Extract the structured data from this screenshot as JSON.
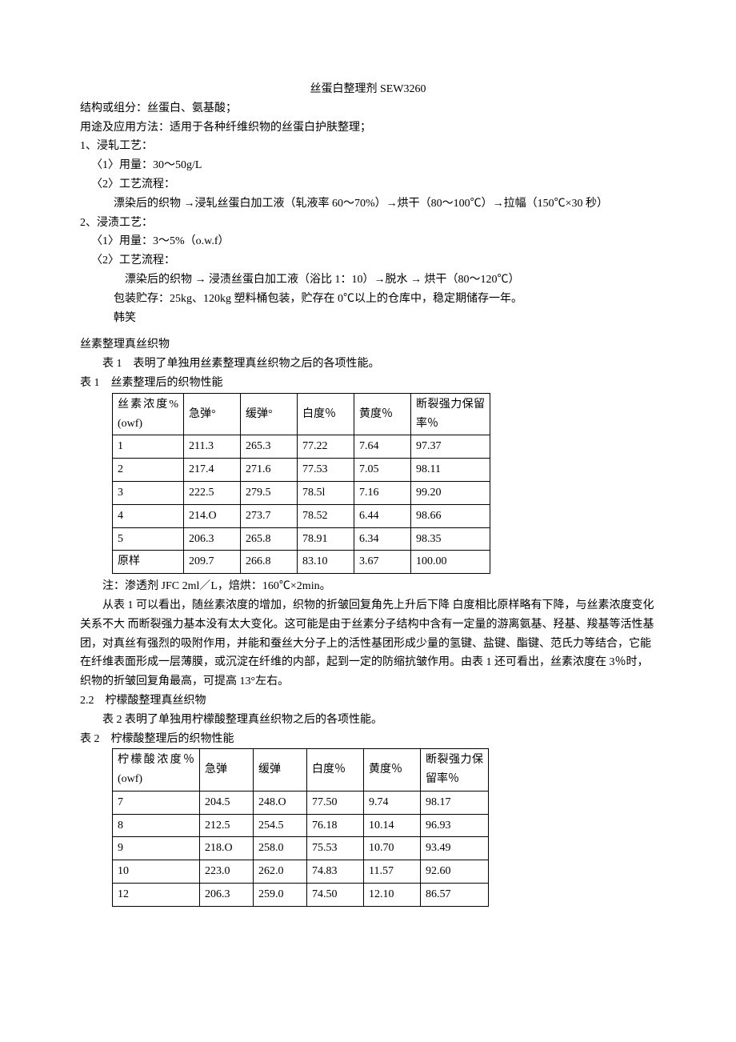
{
  "title": "丝蛋白整理剂 SEW3260",
  "lines": {
    "l1": "结构或组分：丝蛋白、氨基酸；",
    "l2": "用途及应用方法：适用于各种纤维织物的丝蛋白护肤整理；",
    "l3": "1、浸轧工艺：",
    "l4": "〈1〉用量：30～50g/L",
    "l5": "〈2〉工艺流程：",
    "l6": "漂染后的织物 →浸轧丝蛋白加工液（轧液率 60～70%）→烘干（80～100℃）→拉幅（150℃×30 秒）",
    "l7": "2、浸渍工艺：",
    "l8": "〈1〉用量：3～5%（o.w.f）",
    "l9": "〈2〉工艺流程：",
    "l10": "漂染后的织物 → 浸渍丝蛋白加工液（浴比 1：10）→脱水 → 烘干（80～120℃）",
    "l11": "包装贮存：25kg、120kg 塑料桶包装，贮存在 0℃以上的仓库中，稳定期储存一年。",
    "l12": "韩笑",
    "section1": "丝素整理真丝织物",
    "t1intro": "表 1　表明了单独用丝素整理真丝织物之后的各项性能。",
    "t1caption": "表 1　丝素整理后的织物性能",
    "t1note": "注：渗透剂 JFC 2ml／L，焙烘：160℃×2min。",
    "p1": "从表 1 可以看出，随丝素浓度的增加，织物的折皱回复角先上升后下降 白度相比原样略有下降，与丝素浓度变化关系不大 而断裂强力基本没有太大变化。这可能是由于丝素分子结构中含有一定量的游离氨基、羟基、羧基等活性基团，对真丝有强烈的吸附作用，并能和蚕丝大分子上的活性基团形成少量的氢键、盐键、酯键、范氏力等结合，它能在纤维表面形成一层薄膜，或沉淀在纤维的内部，起到一定的防缩抗皱作用。由表 1 还可看出，丝素浓度在 3％时，织物的折皱回复角最高，可提高 13°左右。",
    "section2": "2.2　柠檬酸整理真丝织物",
    "t2intro": "表 2 表明了单独用柠檬酸整理真丝织物之后的各项性能。",
    "t2caption": "表 2　柠檬酸整理后的织物性能"
  },
  "table1": {
    "columns": [
      "丝素浓度%(owf)",
      "急弹°",
      "缓弹°",
      "白度％",
      "黄度％",
      "断裂强力保留率％"
    ],
    "rows": [
      [
        "1",
        "211.3",
        "265.3",
        "77.22",
        "7.64",
        "97.37"
      ],
      [
        "2",
        "217.4",
        "271.6",
        "77.53",
        "7.05",
        "98.11"
      ],
      [
        "3",
        "222.5",
        "279.5",
        "78.5l",
        "7.16",
        "99.20"
      ],
      [
        "4",
        "214.O",
        "273.7",
        "78.52",
        "6.44",
        "98.66"
      ],
      [
        "5",
        "206.3",
        "265.8",
        "78.91",
        "6.34",
        "98.35"
      ],
      [
        "原样",
        "209.7",
        "266.8",
        "83.10",
        "3.67",
        "100.00"
      ]
    ]
  },
  "table2": {
    "columns": [
      "柠檬酸浓度％(owf)",
      "急弹",
      "缓弹",
      "白度％",
      "黄度％",
      "断裂强力保留率％"
    ],
    "rows": [
      [
        "7",
        "204.5",
        "248.O",
        "77.50",
        "9.74",
        "98.17"
      ],
      [
        "8",
        "212.5",
        "254.5",
        "76.18",
        "10.14",
        "96.93"
      ],
      [
        "9",
        "218.O",
        "258.0",
        "75.53",
        "10.70",
        "93.49"
      ],
      [
        "10",
        "223.0",
        "262.0",
        "74.83",
        "11.57",
        "92.60"
      ],
      [
        "12",
        "206.3",
        "259.0",
        "74.50",
        "12.10",
        "86.57"
      ]
    ]
  }
}
